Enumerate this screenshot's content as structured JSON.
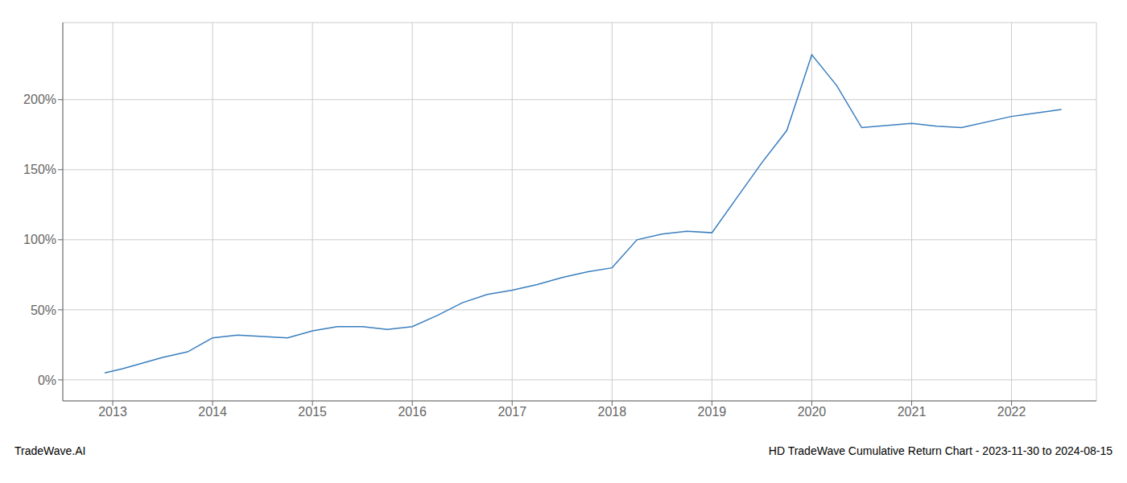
{
  "chart_data": {
    "type": "line",
    "title": "HD TradeWave Cumulative Return Chart - 2023-11-30 to 2024-08-15",
    "annotations": [
      "TradeWave.AI"
    ],
    "x": [
      2012.92,
      2013.1,
      2013.5,
      2013.75,
      2014.0,
      2014.25,
      2014.5,
      2014.75,
      2015.0,
      2015.25,
      2015.5,
      2015.75,
      2016.0,
      2016.25,
      2016.5,
      2016.75,
      2017.0,
      2017.25,
      2017.5,
      2017.75,
      2018.0,
      2018.25,
      2018.5,
      2018.75,
      2019.0,
      2019.25,
      2019.5,
      2019.75,
      2020.0,
      2020.25,
      2020.5,
      2021.0,
      2021.25,
      2021.5,
      2022.0,
      2022.5
    ],
    "values": [
      5,
      8,
      16,
      20,
      30,
      32,
      31,
      30,
      35,
      38,
      38,
      36,
      38,
      46,
      55,
      61,
      64,
      68,
      73,
      77,
      80,
      100,
      104,
      106,
      105,
      130,
      155,
      178,
      232,
      210,
      180,
      183,
      181,
      180,
      188,
      193
    ],
    "color": "#3a7ebf",
    "xlim": [
      2012.5,
      2022.85
    ],
    "ylim": [
      -15,
      255
    ],
    "xticks": [
      2013,
      2014,
      2015,
      2016,
      2017,
      2018,
      2019,
      2020,
      2021,
      2022
    ],
    "yticks": [
      {
        "value": 0,
        "label": "0%"
      },
      {
        "value": 50,
        "label": "50%"
      },
      {
        "value": 100,
        "label": "100%"
      },
      {
        "value": 150,
        "label": "150%"
      },
      {
        "value": 200,
        "label": "200%"
      }
    ],
    "grid": true
  }
}
